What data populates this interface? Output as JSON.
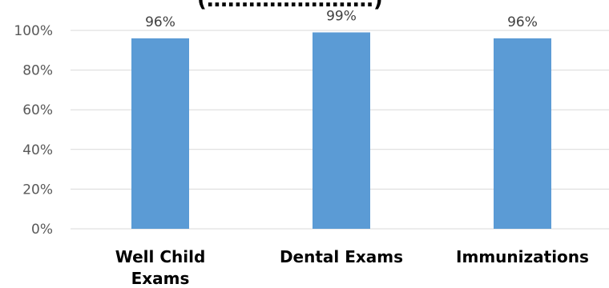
{
  "chart_data": {
    "type": "bar",
    "title": "(……………………)",
    "categories": [
      "Well Child Exams",
      "Dental Exams",
      "Immunizations"
    ],
    "category_lines": [
      [
        "Well Child",
        "Exams"
      ],
      [
        "Dental Exams"
      ],
      [
        "Immunizations"
      ]
    ],
    "values": [
      96,
      99,
      96
    ],
    "data_labels": [
      "96%",
      "99%",
      "96%"
    ],
    "y_ticks": [
      "0%",
      "20%",
      "40%",
      "60%",
      "80%",
      "100%"
    ],
    "y_tick_values": [
      0,
      20,
      40,
      60,
      80,
      100
    ],
    "ylim": [
      0,
      100
    ],
    "grid": true,
    "bar_color": "#5b9bd5",
    "gridline_color": "#d9d9d9"
  }
}
